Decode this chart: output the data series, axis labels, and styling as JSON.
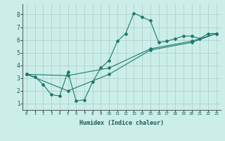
{
  "title": "",
  "xlabel": "Humidex (Indice chaleur)",
  "ylabel": "",
  "background_color": "#cceee8",
  "grid_color": "#aacccc",
  "line_color": "#1a7a6e",
  "xlim": [
    -0.5,
    23.5
  ],
  "ylim": [
    0.5,
    8.8
  ],
  "xticks": [
    0,
    1,
    2,
    3,
    4,
    5,
    6,
    7,
    8,
    9,
    10,
    11,
    12,
    13,
    14,
    15,
    16,
    17,
    18,
    19,
    20,
    21,
    22,
    23
  ],
  "yticks": [
    1,
    2,
    3,
    4,
    5,
    6,
    7,
    8
  ],
  "series1_x": [
    0,
    1,
    2,
    3,
    4,
    5,
    6,
    7,
    8,
    9,
    10,
    11,
    12,
    13,
    14,
    15,
    16,
    17,
    18,
    19,
    20,
    21,
    22,
    23
  ],
  "series1_y": [
    3.3,
    3.1,
    2.5,
    1.7,
    1.6,
    3.5,
    1.2,
    1.3,
    2.7,
    3.8,
    4.4,
    5.9,
    6.5,
    8.1,
    7.8,
    7.5,
    5.8,
    5.9,
    6.1,
    6.3,
    6.3,
    6.1,
    6.5,
    6.5
  ],
  "series2_x": [
    0,
    5,
    10,
    15,
    20,
    23
  ],
  "series2_y": [
    3.3,
    3.2,
    3.8,
    5.3,
    5.9,
    6.5
  ],
  "series3_x": [
    0,
    5,
    10,
    15,
    20,
    23
  ],
  "series3_y": [
    3.3,
    2.0,
    3.3,
    5.2,
    5.8,
    6.5
  ]
}
